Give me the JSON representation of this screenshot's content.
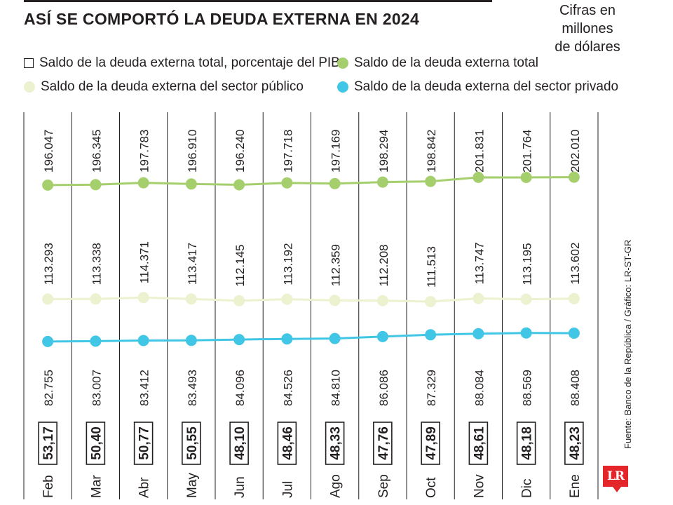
{
  "header": {
    "title": "ASÍ SE COMPORTÓ LA DEUDA EXTERNA EN 2024",
    "units_lines": [
      "Cifras en",
      "millones",
      "de dólares"
    ]
  },
  "legend": {
    "pib": "Saldo de la deuda externa total, porcentaje del PIB",
    "total": "Saldo de la deuda externa total",
    "publico": "Saldo de la deuda externa del sector público",
    "privado": "Saldo de la deuda externa del sector privado"
  },
  "colors": {
    "total": "#a5cf6d",
    "publico": "#ecf2d0",
    "privado": "#41c6e6",
    "text": "#231f20",
    "logo": "#e4262b"
  },
  "footer": {
    "source": "Fuente: Banco de la República / Gráfico: LR-ST-GR",
    "logo_text": "LR"
  },
  "chart_data": {
    "type": "line",
    "categories": [
      "Feb",
      "Mar",
      "Abr",
      "May",
      "Jun",
      "Jul",
      "Ago",
      "Sep",
      "Oct",
      "Nov",
      "Dic",
      "Ene"
    ],
    "series": [
      {
        "key": "total",
        "name": "Saldo de la deuda externa total",
        "values": [
          196047,
          196345,
          197783,
          196910,
          196240,
          197718,
          197169,
          198294,
          198842,
          201831,
          201764,
          202010
        ],
        "labels": [
          "196.047",
          "196.345",
          "197.783",
          "196.910",
          "196.240",
          "197.718",
          "197.169",
          "198.294",
          "198.842",
          "201.831",
          "201.764",
          "202.010"
        ]
      },
      {
        "key": "publico",
        "name": "Saldo de la deuda externa del sector público",
        "values": [
          113293,
          113338,
          114371,
          113417,
          112145,
          113192,
          112359,
          112208,
          111513,
          113747,
          113195,
          113602
        ],
        "labels": [
          "113.293",
          "113.338",
          "114.371",
          "113.417",
          "112.145",
          "113.192",
          "112.359",
          "112.208",
          "111.513",
          "113.747",
          "113.195",
          "113.602"
        ]
      },
      {
        "key": "privado",
        "name": "Saldo de la deuda externa del sector privado",
        "values": [
          82755,
          83007,
          83412,
          83493,
          84096,
          84526,
          84810,
          86086,
          87329,
          88084,
          88569,
          88408
        ],
        "labels": [
          "82.755",
          "83.007",
          "83.412",
          "83.493",
          "84.096",
          "84.526",
          "84.810",
          "86.086",
          "87.329",
          "88.084",
          "88.569",
          "88.408"
        ]
      }
    ],
    "pib_percent": {
      "name": "Saldo de la deuda externa total, porcentaje del PIB",
      "values": [
        53.17,
        50.4,
        50.77,
        50.55,
        48.1,
        48.46,
        48.33,
        47.76,
        47.89,
        48.61,
        48.18,
        48.23
      ],
      "labels": [
        "53,17",
        "50,40",
        "50,77",
        "50,55",
        "48,10",
        "48,46",
        "48,33",
        "47,76",
        "47,89",
        "48,61",
        "48,18",
        "48,23"
      ]
    }
  }
}
